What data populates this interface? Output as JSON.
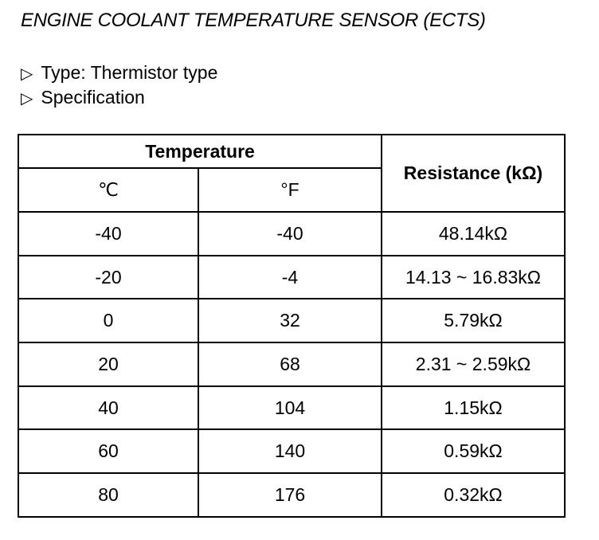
{
  "header": {
    "title": "ENGINE COOLANT TEMPERATURE SENSOR (ECTS)"
  },
  "bullets": [
    "Type: Thermistor type",
    "Specification"
  ],
  "table": {
    "group_header": "Temperature",
    "columns": [
      "℃",
      "°F",
      "Resistance (kΩ)"
    ],
    "rows": [
      [
        "-40",
        "-40",
        "48.14kΩ"
      ],
      [
        "-20",
        "-4",
        "14.13 ~ 16.83kΩ"
      ],
      [
        "0",
        "32",
        "5.79kΩ"
      ],
      [
        "20",
        "68",
        "2.31 ~ 2.59kΩ"
      ],
      [
        "40",
        "104",
        "1.15kΩ"
      ],
      [
        "60",
        "140",
        "0.59kΩ"
      ],
      [
        "80",
        "176",
        "0.32kΩ"
      ]
    ]
  }
}
